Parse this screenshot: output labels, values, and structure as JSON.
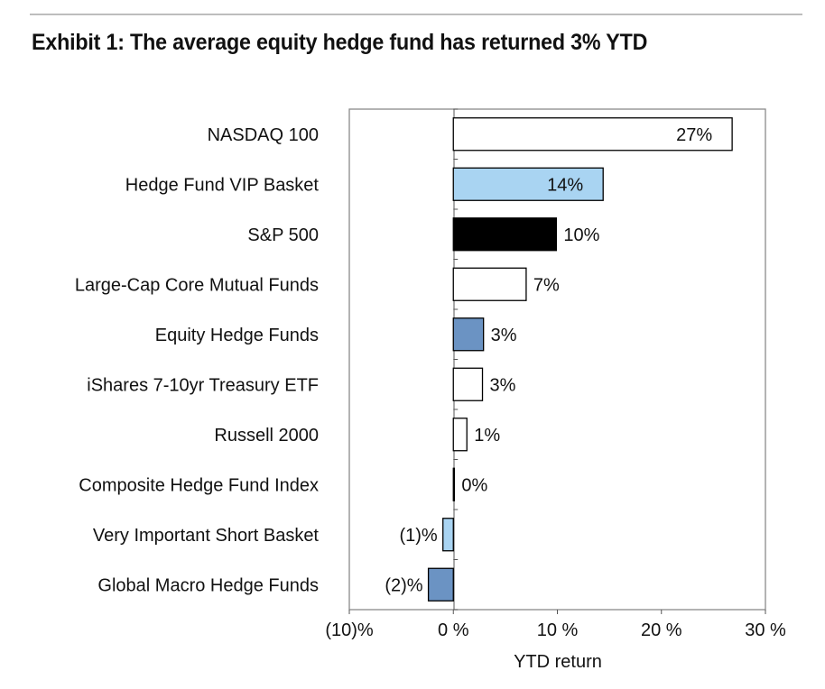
{
  "title": "Exhibit 1: The average equity hedge fund has returned 3% YTD",
  "chart_data": {
    "type": "bar",
    "orientation": "horizontal",
    "categories": [
      "NASDAQ 100",
      "Hedge Fund VIP Basket",
      "S&P 500",
      "Large-Cap Core Mutual Funds",
      "Equity Hedge Funds",
      "iShares 7-10yr Treasury ETF",
      "Russell 2000",
      "Composite Hedge Fund Index",
      "Very Important Short Basket",
      "Global Macro Hedge Funds"
    ],
    "values": [
      26.8,
      14.4,
      9.9,
      7.0,
      2.9,
      2.8,
      1.3,
      0.1,
      -1.0,
      -2.4
    ],
    "data_labels": [
      "27%",
      "14%",
      "10%",
      "7%",
      "3%",
      "3%",
      "1%",
      "0%",
      "(1)%",
      "(2)%"
    ],
    "bar_colors": [
      "#ffffff",
      "#a9d4f2",
      "#000000",
      "#ffffff",
      "#6b93c3",
      "#ffffff",
      "#ffffff",
      "#ffffff",
      "#a9d4f2",
      "#6b93c3"
    ],
    "xlabel": "YTD return",
    "ylabel": "",
    "xlim": [
      -10,
      30
    ],
    "x_ticks": [
      -10,
      0,
      10,
      20,
      30
    ],
    "x_tick_labels": [
      "(10)%",
      "0 %",
      "10 %",
      "20 %",
      "30 %"
    ],
    "grid": false,
    "legend": "none"
  }
}
